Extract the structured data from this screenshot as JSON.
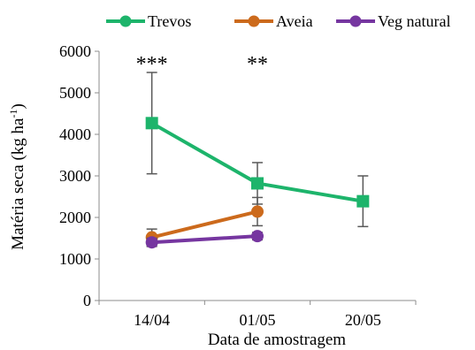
{
  "chart_data": {
    "type": "line",
    "xlabel": "Data de amostragem",
    "ylabel": "Matéria seca (kg ha",
    "ylabel_sup": "-1",
    "ylabel_close": ")",
    "categories": [
      "14/04",
      "01/05",
      "20/05"
    ],
    "ylim": [
      0,
      6000
    ],
    "yticks": [
      "0",
      "1000",
      "2000",
      "3000",
      "4000",
      "5000",
      "6000"
    ],
    "grid": false,
    "legend_position": "top",
    "series": [
      {
        "name": "Trevos",
        "color": "#1db46b",
        "values": [
          4270,
          2820,
          2390
        ],
        "errors": [
          1220,
          500,
          610
        ],
        "marker": "square"
      },
      {
        "name": "Aveia",
        "color": "#cc6a1c",
        "values": [
          1520,
          2140,
          null
        ],
        "errors": [
          200,
          340,
          null
        ],
        "marker": "circle"
      },
      {
        "name": "Veg natural",
        "color": "#7636a0",
        "values": [
          1400,
          1550,
          null
        ],
        "errors": [
          100,
          90,
          null
        ],
        "marker": "circle"
      }
    ],
    "annotations": [
      {
        "category": "14/04",
        "text": "***"
      },
      {
        "category": "01/05",
        "text": "**"
      }
    ]
  }
}
